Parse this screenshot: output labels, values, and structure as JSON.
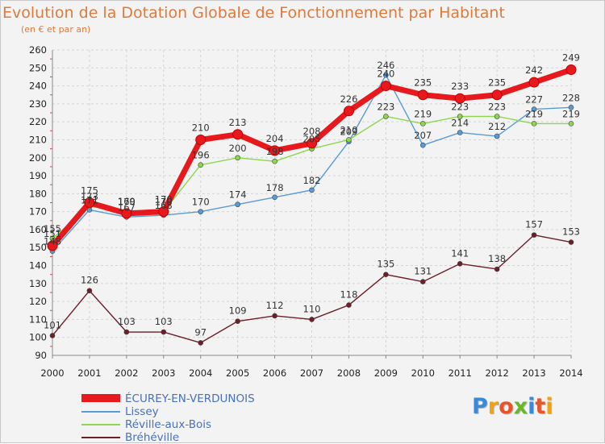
{
  "chart_data": {
    "type": "line",
    "title": "Evolution de la Dotation Globale de Fonctionnement par Habitant",
    "subtitle": "(en € et par an)",
    "x": [
      2000,
      2001,
      2002,
      2003,
      2004,
      2005,
      2006,
      2007,
      2008,
      2009,
      2010,
      2011,
      2012,
      2013,
      2014
    ],
    "ylim": [
      90,
      260
    ],
    "yticks": [
      90,
      100,
      110,
      120,
      130,
      140,
      150,
      160,
      170,
      180,
      190,
      200,
      210,
      220,
      230,
      240,
      250,
      260
    ],
    "grid": true,
    "legend_position": "bottom-left",
    "series": [
      {
        "name": "Bréhéville",
        "color": "#6b1f28",
        "values": [
          101,
          126,
          103,
          103,
          97,
          109,
          112,
          110,
          118,
          135,
          131,
          141,
          138,
          157,
          153
        ]
      },
      {
        "name": "Lissey",
        "color": "#5a9bd5",
        "values": [
          148,
          171,
          167,
          168,
          170,
          174,
          178,
          182,
          209,
          246,
          207,
          214,
          212,
          227,
          228
        ]
      },
      {
        "name": "Réville-aux-Bois",
        "color": "#8ed650",
        "values": [
          155,
          173,
          170,
          170,
          196,
          200,
          198,
          205,
          210,
          223,
          219,
          223,
          223,
          219,
          219
        ]
      },
      {
        "name": "ÉCUREY-EN-VERDUNOIS",
        "color": "#e8191d",
        "values": [
          151,
          175,
          169,
          170,
          210,
          213,
          204,
          208,
          226,
          240,
          235,
          233,
          235,
          242,
          249
        ]
      }
    ],
    "data_labels": [
      [
        "101",
        "126",
        "103",
        "103",
        "97",
        "109",
        "112",
        "110",
        "118",
        "135",
        "131",
        "141",
        "138",
        "157",
        "153"
      ],
      [
        "148",
        "171",
        "167",
        "168",
        "170",
        "174",
        "178",
        "182",
        "209",
        "246",
        "207",
        "214",
        "212",
        "227",
        "228"
      ],
      [
        "155",
        "173",
        "170",
        "170",
        "196",
        "200",
        "198",
        "205",
        "210",
        "223",
        "219",
        "223",
        "223",
        "219",
        "219"
      ],
      [
        "151",
        "175",
        "169",
        "170",
        "210",
        "213",
        "204",
        "208",
        "226",
        "240",
        "235",
        "233",
        "235",
        "242",
        "249"
      ]
    ]
  },
  "legend": {
    "items": [
      {
        "label": "ÉCUREY-EN-VERDUNOIS",
        "color": "#e8191d",
        "thick": true
      },
      {
        "label": "Lissey",
        "color": "#5a9bd5",
        "thick": false
      },
      {
        "label": "Réville-aux-Bois",
        "color": "#8ed650",
        "thick": false
      },
      {
        "label": "Bréhéville",
        "color": "#6b1f28",
        "thick": false
      }
    ]
  },
  "logo": {
    "letters": [
      "P",
      "r",
      "o",
      "x",
      "i",
      "t",
      "i"
    ],
    "colors": [
      "#3a8ad8",
      "#f2a20f",
      "#e8552a",
      "#6ab82a",
      "#3a8ad8",
      "#e8552a",
      "#f2a20f"
    ]
  }
}
